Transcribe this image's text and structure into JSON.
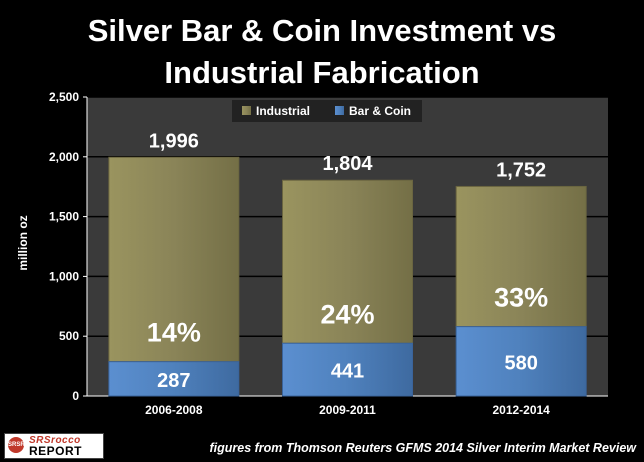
{
  "chart_data": {
    "type": "bar",
    "stacked": true,
    "title_lines": [
      "Silver Bar & Coin Investment vs",
      "Industrial Fabrication"
    ],
    "ylabel": "million oz",
    "categories": [
      "2006-2008",
      "2009-2011",
      "2012-2014"
    ],
    "series": [
      {
        "name": "Bar & Coin",
        "values": [
          287,
          441,
          580
        ],
        "color": "#4f81bd"
      },
      {
        "name": "Industrial",
        "values": [
          1709,
          1363,
          1172
        ],
        "color": "#8a8458"
      }
    ],
    "totals": [
      1996,
      1804,
      1752
    ],
    "total_labels": [
      "1,996",
      "1,804",
      "1,752"
    ],
    "bar_coin_labels": [
      "287",
      "441",
      "580"
    ],
    "percent_labels": [
      "14%",
      "24%",
      "33%"
    ],
    "yticks": [
      0,
      500,
      1000,
      1500,
      2000,
      2500
    ],
    "ytick_labels": [
      "0",
      "500",
      "1,000",
      "1,500",
      "2,000",
      "2,500"
    ],
    "ylim": [
      0,
      2500
    ],
    "legend_entries": [
      "Industrial",
      "Bar & Coin"
    ],
    "legend_position": "top-center",
    "grid": true,
    "plot_background": "#3a3a3a",
    "gridline_color": "#000000"
  },
  "logo": {
    "seal": "SRSR",
    "line1": "SRSrocco",
    "line2": "REPORT"
  },
  "source_note": "figures from Thomson Reuters GFMS 2014 Silver Interim Market Review"
}
